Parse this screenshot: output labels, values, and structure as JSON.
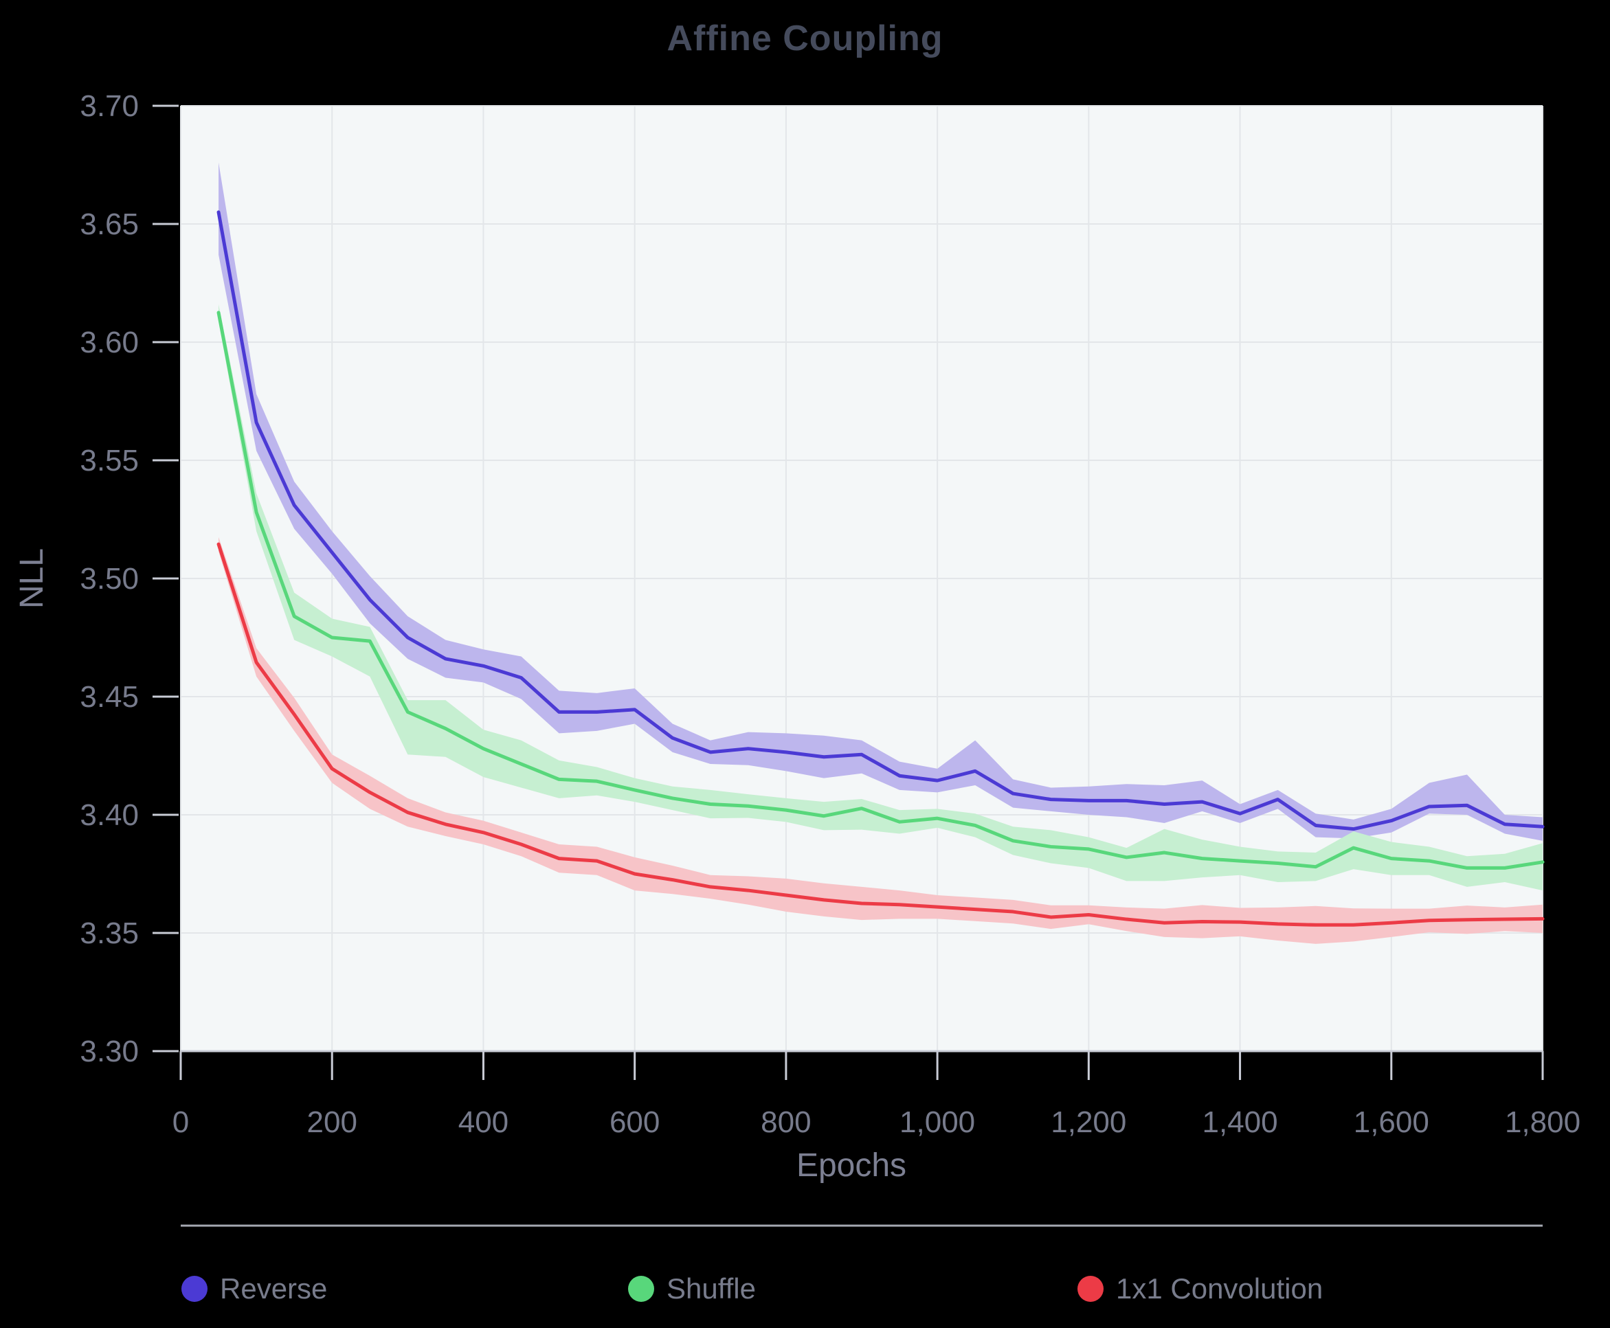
{
  "panel": {
    "title": "Affine Coupling"
  },
  "colors": {
    "background": "#000000",
    "plot_background": "#f4f7f8",
    "gridline": "#e3e6e9",
    "axis_line": "#c9ccd6",
    "tick_label": "#777b8c",
    "axis_title": "#7d8093",
    "title": "#454b5c",
    "legend_label": "#787c8c",
    "separator": "#a5a8b2"
  },
  "chart_data": {
    "type": "line",
    "title": "Affine Coupling",
    "xlabel": "Epochs",
    "ylabel": "NLL",
    "xlim": [
      0,
      1800
    ],
    "ylim": [
      3.3,
      3.7
    ],
    "xticks": [
      0,
      200,
      400,
      600,
      800,
      1000,
      1200,
      1400,
      1600,
      1800
    ],
    "xtick_labels": [
      "0",
      "200",
      "400",
      "600",
      "800",
      "1,000",
      "1,200",
      "1,400",
      "1,600",
      "1,800"
    ],
    "yticks": [
      3.3,
      3.35,
      3.4,
      3.45,
      3.5,
      3.55,
      3.6,
      3.65,
      3.7
    ],
    "ytick_labels": [
      "3.30",
      "3.35",
      "3.40",
      "3.45",
      "3.50",
      "3.55",
      "3.60",
      "3.65",
      "3.70"
    ],
    "grid": true,
    "legend_position": "bottom",
    "x": [
      50,
      100,
      150,
      200,
      250,
      300,
      350,
      400,
      450,
      500,
      550,
      600,
      650,
      700,
      750,
      800,
      850,
      900,
      950,
      1000,
      1050,
      1100,
      1150,
      1200,
      1250,
      1300,
      1350,
      1400,
      1450,
      1500,
      1550,
      1600,
      1650,
      1700,
      1750,
      1800
    ],
    "series": [
      {
        "name": "Reverse",
        "color": "#4B3AD4",
        "band_color": "#bdb6ed",
        "values": [
          3.655,
          3.566,
          3.531,
          3.511,
          3.491,
          3.475,
          3.466,
          3.463,
          3.458,
          3.4435,
          3.4435,
          3.4445,
          3.4325,
          3.4265,
          3.428,
          3.4265,
          3.4245,
          3.4255,
          3.4165,
          3.4145,
          3.4185,
          3.409,
          3.4065,
          3.406,
          3.406,
          3.4045,
          3.4055,
          3.4005,
          3.4065,
          3.3955,
          3.394,
          3.3975,
          3.4035,
          3.404,
          3.396,
          3.395
        ],
        "upper": [
          3.676,
          3.578,
          3.541,
          3.52,
          3.501,
          3.484,
          3.474,
          3.47,
          3.467,
          3.4525,
          3.4515,
          3.4535,
          3.4385,
          3.4315,
          3.435,
          3.4345,
          3.4335,
          3.4315,
          3.4225,
          3.4195,
          3.4315,
          3.415,
          3.4115,
          3.412,
          3.413,
          3.4125,
          3.4145,
          3.4045,
          3.4105,
          3.4005,
          3.398,
          3.4025,
          3.4135,
          3.417,
          3.4,
          3.399
        ],
        "lower": [
          3.637,
          3.554,
          3.521,
          3.502,
          3.481,
          3.466,
          3.458,
          3.456,
          3.449,
          3.4345,
          3.4355,
          3.4385,
          3.4265,
          3.4215,
          3.421,
          3.4185,
          3.4155,
          3.4175,
          3.4105,
          3.4095,
          3.4125,
          3.403,
          3.4015,
          3.4,
          3.399,
          3.3965,
          3.4015,
          3.3965,
          3.4025,
          3.3905,
          3.39,
          3.3925,
          3.4005,
          3.4,
          3.392,
          3.389
        ]
      },
      {
        "name": "Shuffle",
        "color": "#58D77B",
        "band_color": "#c6efd1",
        "values": [
          3.6125,
          3.528,
          3.484,
          3.475,
          3.4735,
          3.4435,
          3.4365,
          3.428,
          3.4215,
          3.415,
          3.4142,
          3.4105,
          3.407,
          3.4045,
          3.4037,
          3.402,
          3.3995,
          3.4027,
          3.397,
          3.3985,
          3.3955,
          3.389,
          3.3865,
          3.3855,
          3.382,
          3.384,
          3.3815,
          3.3805,
          3.3795,
          3.378,
          3.386,
          3.3815,
          3.3805,
          3.3775,
          3.3775,
          3.38
        ],
        "upper": [
          3.616,
          3.536,
          3.494,
          3.483,
          3.4795,
          3.4485,
          3.4485,
          3.436,
          3.4315,
          3.423,
          3.4202,
          3.4155,
          3.412,
          3.4105,
          3.4087,
          3.407,
          3.4055,
          3.4067,
          3.402,
          3.4025,
          3.4005,
          3.395,
          3.3935,
          3.3905,
          3.386,
          3.394,
          3.3895,
          3.3865,
          3.3845,
          3.384,
          3.393,
          3.3885,
          3.3865,
          3.3825,
          3.3835,
          3.388
        ],
        "lower": [
          3.609,
          3.52,
          3.474,
          3.467,
          3.4585,
          3.4255,
          3.4245,
          3.416,
          3.4115,
          3.407,
          3.4082,
          3.4055,
          3.402,
          3.3985,
          3.3987,
          3.397,
          3.3935,
          3.3937,
          3.392,
          3.3945,
          3.3905,
          3.383,
          3.3795,
          3.3775,
          3.372,
          3.372,
          3.3735,
          3.3745,
          3.3715,
          3.372,
          3.377,
          3.3745,
          3.3745,
          3.3695,
          3.3715,
          3.368
        ]
      },
      {
        "name": "1x1 Convolution",
        "color": "#EC3B46",
        "band_color": "#f7c4c8",
        "values": [
          3.5145,
          3.4645,
          3.4425,
          3.4195,
          3.4095,
          3.401,
          3.396,
          3.3925,
          3.3875,
          3.3815,
          3.3805,
          3.375,
          3.3725,
          3.3695,
          3.368,
          3.366,
          3.364,
          3.3625,
          3.362,
          3.361,
          3.36,
          3.359,
          3.3567,
          3.3577,
          3.3558,
          3.3543,
          3.3548,
          3.3546,
          3.3538,
          3.3534,
          3.3534,
          3.3543,
          3.3553,
          3.3556,
          3.3558,
          3.356
        ],
        "upper": [
          3.5175,
          3.4705,
          3.4495,
          3.4255,
          3.4165,
          3.407,
          3.401,
          3.3975,
          3.3925,
          3.3875,
          3.3865,
          3.382,
          3.3785,
          3.3745,
          3.374,
          3.373,
          3.371,
          3.3695,
          3.368,
          3.366,
          3.365,
          3.364,
          3.3617,
          3.3617,
          3.3608,
          3.3603,
          3.3618,
          3.3606,
          3.3608,
          3.3614,
          3.3604,
          3.3603,
          3.3603,
          3.3616,
          3.3608,
          3.362
        ],
        "lower": [
          3.5115,
          3.4585,
          3.4355,
          3.4135,
          3.4025,
          3.395,
          3.391,
          3.3875,
          3.3825,
          3.3755,
          3.3745,
          3.368,
          3.3665,
          3.3645,
          3.362,
          3.359,
          3.357,
          3.3555,
          3.356,
          3.356,
          3.355,
          3.354,
          3.3517,
          3.3537,
          3.3508,
          3.3483,
          3.3478,
          3.3486,
          3.3468,
          3.3454,
          3.3464,
          3.3483,
          3.3503,
          3.3496,
          3.3508,
          3.35
        ]
      }
    ]
  }
}
